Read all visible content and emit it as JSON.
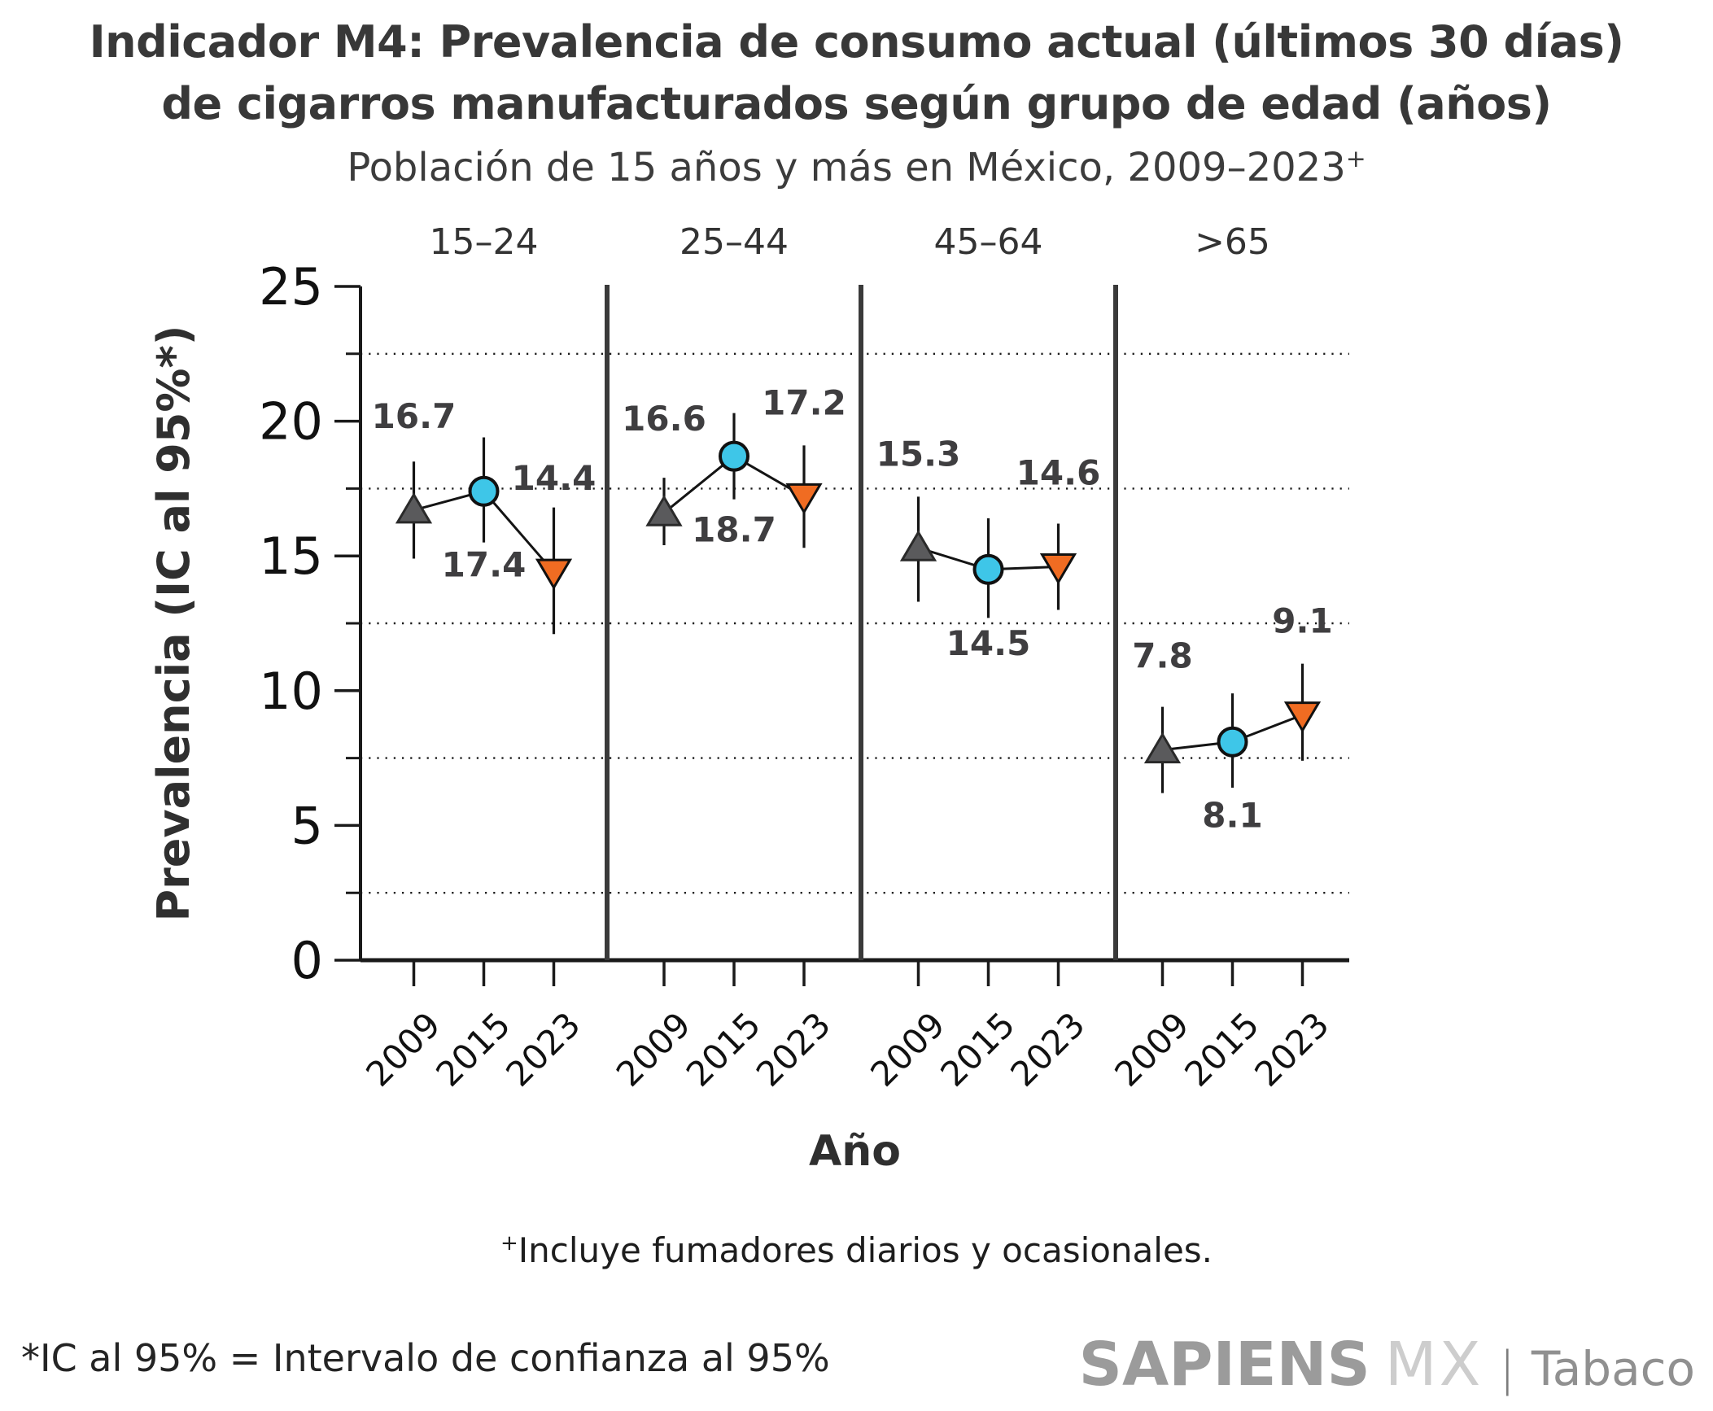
{
  "title": {
    "line1": "Indicador M4: Prevalencia de consumo actual (últimos 30 días)",
    "line2": "de cigarros manufacturados según grupo de edad (años)"
  },
  "subtitle": {
    "text": "Población de 15 años y más en México, 2009–2023",
    "superscript": "+"
  },
  "chart_data": {
    "type": "line",
    "x_years": [
      "2009",
      "2015",
      "2023"
    ],
    "xlabel": "Año",
    "ylabel": "Prevalencia (IC al 95%*)",
    "ylim": [
      0,
      25
    ],
    "y_major_ticks": [
      0,
      5,
      10,
      15,
      20,
      25
    ],
    "y_dotted_gridlines": [
      2.5,
      7.5,
      12.5,
      17.5,
      22.5
    ],
    "grid": "dotted horizontal at minor ticks",
    "legend_position": "none",
    "marker_by_year": {
      "2009": "triangle-up",
      "2015": "circle",
      "2023": "triangle-down"
    },
    "colors": {
      "triangle_up_2009": "#5a5a5c",
      "circle_2015": "#3ec6e8",
      "triangle_down_2023": "#f06c22",
      "axis": "#1a1a1a",
      "separator": "#3a3a3a",
      "data_label": "#3f3e40"
    },
    "panels": [
      {
        "age_group": "15–24",
        "points": [
          {
            "year": "2009",
            "value": 16.7,
            "ci": [
              14.9,
              18.5
            ],
            "label": "16.7",
            "label_pos": "above"
          },
          {
            "year": "2015",
            "value": 17.4,
            "ci": [
              15.5,
              19.4
            ],
            "label": "17.4",
            "label_pos": "below"
          },
          {
            "year": "2023",
            "value": 14.4,
            "ci": [
              12.1,
              16.8
            ],
            "label": "14.4",
            "label_pos": "above"
          }
        ]
      },
      {
        "age_group": "25–44",
        "points": [
          {
            "year": "2009",
            "value": 16.6,
            "ci": [
              15.4,
              17.9
            ],
            "label": "16.6",
            "label_pos": "above"
          },
          {
            "year": "2015",
            "value": 18.7,
            "ci": [
              17.1,
              20.3
            ],
            "label": "18.7",
            "label_pos": "below"
          },
          {
            "year": "2023",
            "value": 17.2,
            "ci": [
              15.3,
              19.1
            ],
            "label": "17.2",
            "label_pos": "above"
          }
        ]
      },
      {
        "age_group": "45–64",
        "points": [
          {
            "year": "2009",
            "value": 15.3,
            "ci": [
              13.3,
              17.2
            ],
            "label": "15.3",
            "label_pos": "above"
          },
          {
            "year": "2015",
            "value": 14.5,
            "ci": [
              12.7,
              16.4
            ],
            "label": "14.5",
            "label_pos": "below"
          },
          {
            "year": "2023",
            "value": 14.6,
            "ci": [
              13.0,
              16.2
            ],
            "label": "14.6",
            "label_pos": "above"
          }
        ]
      },
      {
        "age_group": ">65",
        "points": [
          {
            "year": "2009",
            "value": 7.8,
            "ci": [
              6.2,
              9.4
            ],
            "label": "7.8",
            "label_pos": "above"
          },
          {
            "year": "2015",
            "value": 8.1,
            "ci": [
              6.4,
              9.9
            ],
            "label": "8.1",
            "label_pos": "below"
          },
          {
            "year": "2023",
            "value": 9.1,
            "ci": [
              7.4,
              11.0
            ],
            "label": "9.1",
            "label_pos": "above"
          }
        ]
      }
    ]
  },
  "footnotes": {
    "plus_symbol": "+",
    "include_text": "Incluye fumadores diarios y ocasionales.",
    "ci_note": "*IC al 95% = Intervalo de confianza al 95%"
  },
  "logo": {
    "sapiens": "SAPIENS",
    "mx": "MX",
    "separator": "|",
    "tabaco": "Tabaco"
  }
}
